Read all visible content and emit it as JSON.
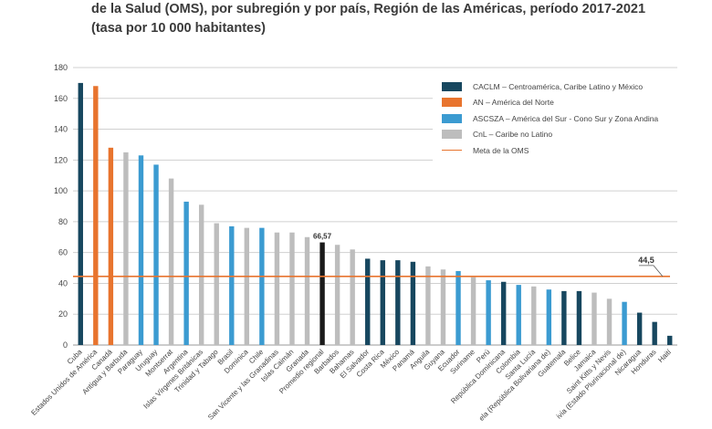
{
  "title_lines": [
    "de la Salud (OMS), por subregión y por país, Región de las Américas, período 2017-2021",
    "(tasa por 10 000 habitantes)"
  ],
  "colors": {
    "CACLM": "#17475f",
    "AN": "#e8742e",
    "ASCSZA": "#3b9bd1",
    "CnL": "#bdbdbd",
    "regional": "#1a1a1a",
    "target": "#e8742e"
  },
  "legend": [
    {
      "key": "CACLM",
      "label": "CACLM – Centroamérica, Caribe Latino y México"
    },
    {
      "key": "AN",
      "label": "AN – América del Norte"
    },
    {
      "key": "ASCSZA",
      "label": "ASCSZA – América del Sur - Cono Sur y Zona Andina"
    },
    {
      "key": "CnL",
      "label": "CnL – Caribe no Latino"
    },
    {
      "key": "target",
      "label": "Meta de la OMS",
      "kind": "line"
    }
  ],
  "chart_data": {
    "type": "bar",
    "title": "",
    "xlabel": "",
    "ylabel": "",
    "ylim": [
      0,
      180
    ],
    "yticks": [
      0,
      20,
      40,
      60,
      80,
      100,
      120,
      140,
      160,
      180
    ],
    "grid": true,
    "legend_position": "top-right",
    "target_line": {
      "value": 44.5,
      "label": "44,5"
    },
    "value_labels": [
      {
        "category": "Promedio regional",
        "label": "66,57"
      }
    ],
    "categories": [
      "Cuba",
      "Estados Unidos de América",
      "Canadá",
      "Antigua y Barbuda",
      "Paraguay",
      "Uruguay",
      "Montserrat",
      "Argentina",
      "Islas Vírgenes Británicas",
      "Trinidad y Tabago",
      "Brasil",
      "Dominica",
      "Chile",
      "San Vicente y las Granadinas",
      "Islas Caimán",
      "Granada",
      "Promedio regional",
      "Barbados",
      "Bahamas",
      "El Salvador",
      "Costa Rica",
      "México",
      "Panamá",
      "Anguila",
      "Guyana",
      "Ecuador",
      "Suriname",
      "Perú",
      "República Dominicana",
      "Colombia",
      "Santa Lucía",
      "Venezuela (República Bolivariana de)",
      "Guatemala",
      "Belice",
      "Jamaica",
      "Saint Kitts y Nevis",
      "Bolivia (Estado Plurinacional de)",
      "Nicaragua",
      "Honduras",
      "Haití"
    ],
    "visible_labels": [
      "Cuba",
      "Estados Unidos de América",
      "Canadá",
      "Antigua y Barbuda",
      "Paraguay",
      "Uruguay",
      "Montserrat",
      "Argentina",
      "Islas Vírgenes Británicas",
      "Trinidad y Tabago",
      "Brasil",
      "Dominica",
      "Chile",
      "San Vicente y las Granadinas",
      "Islas Caimán",
      "Granada",
      "Promedio regional",
      "Barbados",
      "Bahamas",
      "El Salvador",
      "Costa Rica",
      "México",
      "Panamá",
      "Anguila",
      "Guyana",
      "Ecuador",
      "Suriname",
      "Perú",
      "República Dominicana",
      "Colombia",
      "Santa Lucía",
      "ela (República Bolivariana de)",
      "Guatemala",
      "Belice",
      "Jamaica",
      "Saint Kitts y Nevis",
      "ivia (Estado Plurinacional de)",
      "Nicaragua",
      "Honduras",
      "Haití"
    ],
    "groups": [
      "CACLM",
      "AN",
      "AN",
      "CnL",
      "ASCSZA",
      "ASCSZA",
      "CnL",
      "ASCSZA",
      "CnL",
      "CnL",
      "ASCSZA",
      "CnL",
      "ASCSZA",
      "CnL",
      "CnL",
      "CnL",
      "regional",
      "CnL",
      "CnL",
      "CACLM",
      "CACLM",
      "CACLM",
      "CACLM",
      "CnL",
      "CnL",
      "ASCSZA",
      "CnL",
      "ASCSZA",
      "CACLM",
      "ASCSZA",
      "CnL",
      "ASCSZA",
      "CACLM",
      "CACLM",
      "CnL",
      "CnL",
      "ASCSZA",
      "CACLM",
      "CACLM",
      "CACLM"
    ],
    "values": [
      170,
      168,
      128,
      125,
      123,
      117,
      108,
      93,
      91,
      79,
      77,
      76,
      76,
      73,
      73,
      70,
      66.57,
      65,
      62,
      56,
      55,
      55,
      54,
      51,
      49,
      48,
      44,
      42,
      41,
      39,
      38,
      36,
      35,
      35,
      34,
      30,
      28,
      21,
      15,
      6
    ]
  }
}
